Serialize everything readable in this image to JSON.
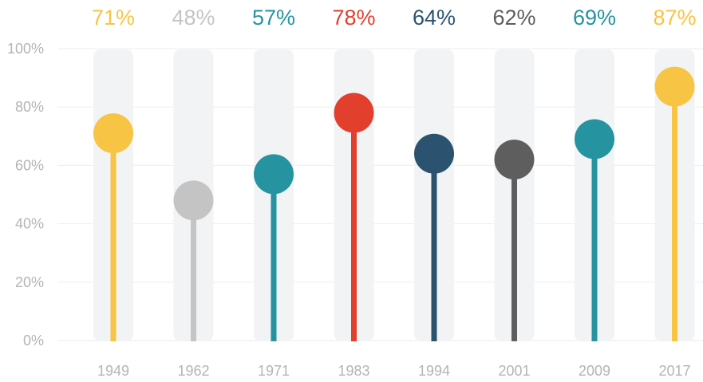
{
  "chart_data": {
    "type": "lollipop",
    "categories": [
      "1949",
      "1962",
      "1971",
      "1983",
      "1994",
      "2001",
      "2009",
      "2017"
    ],
    "values": [
      71,
      48,
      57,
      78,
      64,
      62,
      69,
      87
    ],
    "value_labels": [
      "71%",
      "48%",
      "57%",
      "78%",
      "64%",
      "62%",
      "69%",
      "87%"
    ],
    "colors": [
      "#f8c444",
      "#c4c4c4",
      "#2593a0",
      "#e23f2c",
      "#2b5370",
      "#5e5e5e",
      "#2593a0",
      "#f8c444"
    ],
    "yticks": [
      0,
      20,
      40,
      60,
      80,
      100
    ],
    "ytick_labels": [
      "0%",
      "20%",
      "40%",
      "60%",
      "80%",
      "100%"
    ],
    "ylim": [
      0,
      100
    ],
    "grid": true,
    "track_color": "#f2f3f5",
    "grid_color": "#eeeeee",
    "axis_text_color": "#b4b4b4"
  }
}
